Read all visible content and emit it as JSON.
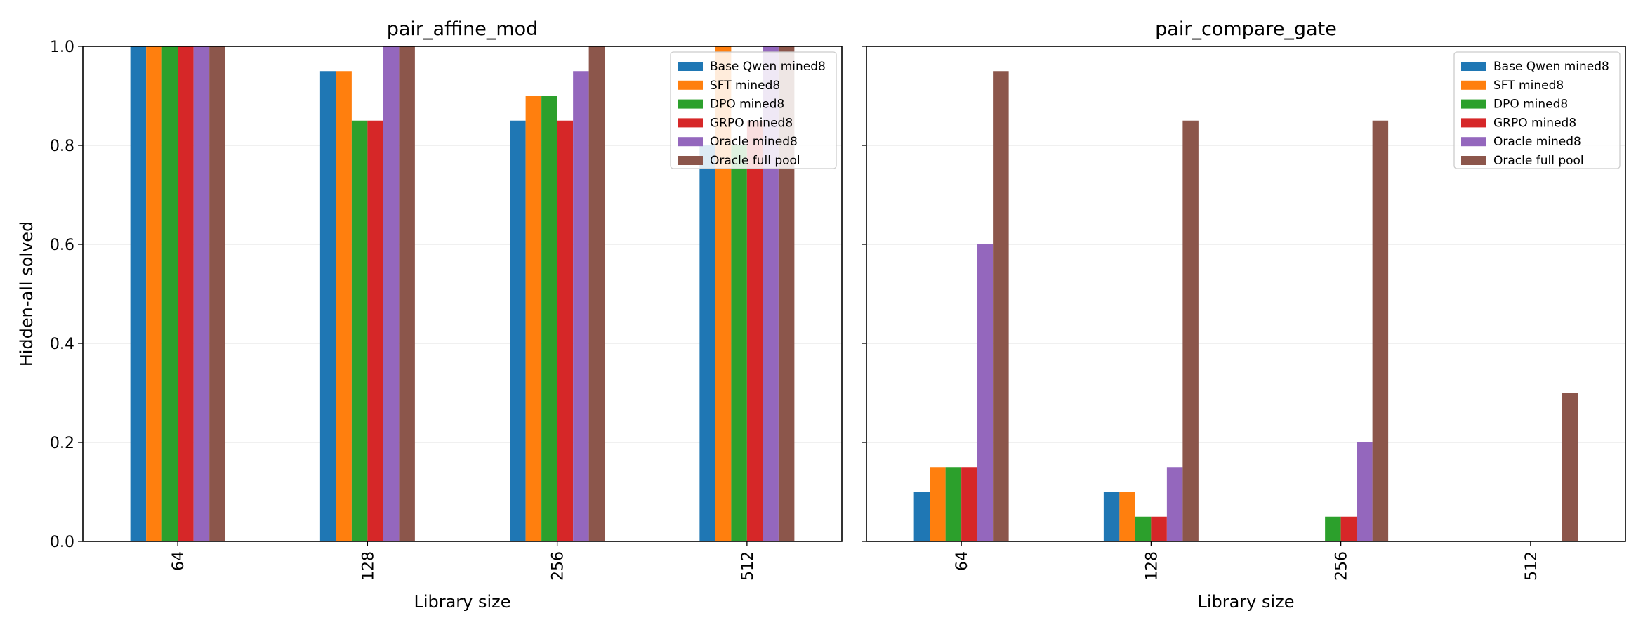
{
  "chart_data": [
    {
      "type": "bar",
      "title": "pair_affine_mod",
      "xlabel": "Library size",
      "ylabel": "Hidden-all solved",
      "categories": [
        "64",
        "128",
        "256",
        "512"
      ],
      "ylim": [
        0,
        1.0
      ],
      "yticks": [
        "0.0",
        "0.2",
        "0.4",
        "0.6",
        "0.8",
        "1.0"
      ],
      "grid": "y",
      "legend_position": "top-right",
      "series": [
        {
          "name": "Base Qwen mined8",
          "color": "#1f77b4",
          "values": [
            1.0,
            0.95,
            0.85,
            0.8
          ]
        },
        {
          "name": "SFT mined8",
          "color": "#ff7f0e",
          "values": [
            1.0,
            0.95,
            0.9,
            1.0
          ]
        },
        {
          "name": "DPO mined8",
          "color": "#2ca02c",
          "values": [
            1.0,
            0.85,
            0.9,
            0.8
          ]
        },
        {
          "name": "GRPO mined8",
          "color": "#d62728",
          "values": [
            1.0,
            0.85,
            0.85,
            0.85
          ]
        },
        {
          "name": "Oracle mined8",
          "color": "#9467bd",
          "values": [
            1.0,
            1.0,
            0.95,
            1.0
          ]
        },
        {
          "name": "Oracle full pool",
          "color": "#8c564b",
          "values": [
            1.0,
            1.0,
            1.0,
            1.0
          ]
        }
      ]
    },
    {
      "type": "bar",
      "title": "pair_compare_gate",
      "xlabel": "Library size",
      "ylabel": "",
      "categories": [
        "64",
        "128",
        "256",
        "512"
      ],
      "ylim": [
        0,
        1.0
      ],
      "yticks": [],
      "grid": "y",
      "legend_position": "top-right",
      "series": [
        {
          "name": "Base Qwen mined8",
          "color": "#1f77b4",
          "values": [
            0.1,
            0.1,
            0.0,
            0.0
          ]
        },
        {
          "name": "SFT mined8",
          "color": "#ff7f0e",
          "values": [
            0.15,
            0.1,
            0.0,
            0.0
          ]
        },
        {
          "name": "DPO mined8",
          "color": "#2ca02c",
          "values": [
            0.15,
            0.05,
            0.05,
            0.0
          ]
        },
        {
          "name": "GRPO mined8",
          "color": "#d62728",
          "values": [
            0.15,
            0.05,
            0.05,
            0.0
          ]
        },
        {
          "name": "Oracle mined8",
          "color": "#9467bd",
          "values": [
            0.6,
            0.15,
            0.2,
            0.0
          ]
        },
        {
          "name": "Oracle full pool",
          "color": "#8c564b",
          "values": [
            0.95,
            0.85,
            0.85,
            0.3
          ]
        }
      ]
    }
  ]
}
